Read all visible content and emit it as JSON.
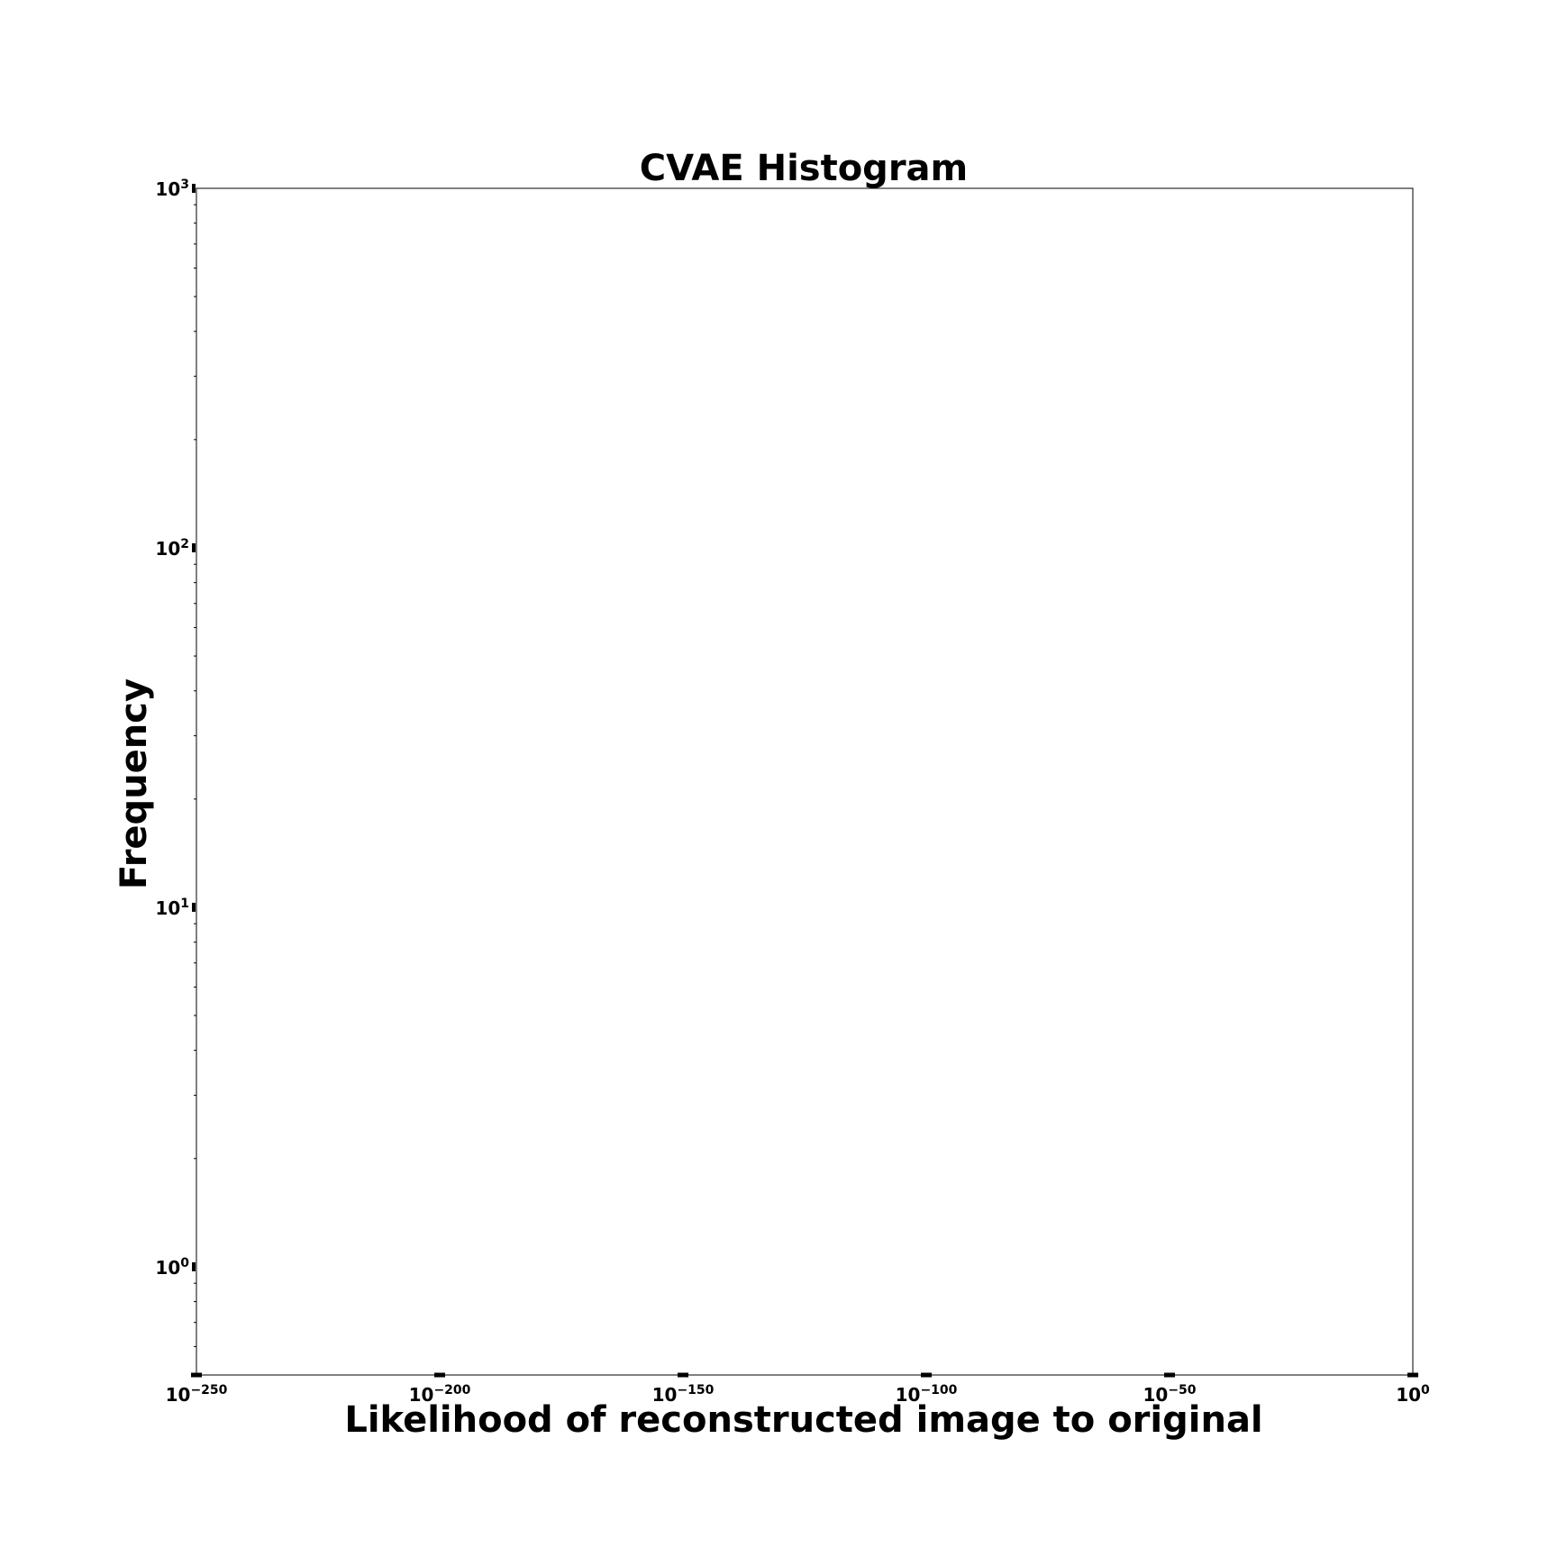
{
  "chart_data": {
    "type": "bar",
    "title": "CVAE Histogram",
    "xlabel": "Likelihood of reconstructed image to original",
    "ylabel": "Frequency",
    "xscale": "log",
    "yscale": "log",
    "xlim": [
      "1e-250",
      "1e0"
    ],
    "ylim": [
      0.5,
      1000
    ],
    "x_ticks": [
      {
        "base": "10",
        "exp": "−250",
        "value": "1e-250"
      },
      {
        "base": "10",
        "exp": "−200",
        "value": "1e-200"
      },
      {
        "base": "10",
        "exp": "−150",
        "value": "1e-150"
      },
      {
        "base": "10",
        "exp": "−100",
        "value": "1e-100"
      },
      {
        "base": "10",
        "exp": "−50",
        "value": "1e-50"
      },
      {
        "base": "10",
        "exp": "0",
        "value": "1e0"
      }
    ],
    "y_ticks": [
      {
        "base": "10",
        "exp": "0",
        "value": 1
      },
      {
        "base": "10",
        "exp": "1",
        "value": 10
      },
      {
        "base": "10",
        "exp": "2",
        "value": 100
      },
      {
        "base": "10",
        "exp": "3",
        "value": 1000
      }
    ],
    "series": [],
    "grid": false
  }
}
